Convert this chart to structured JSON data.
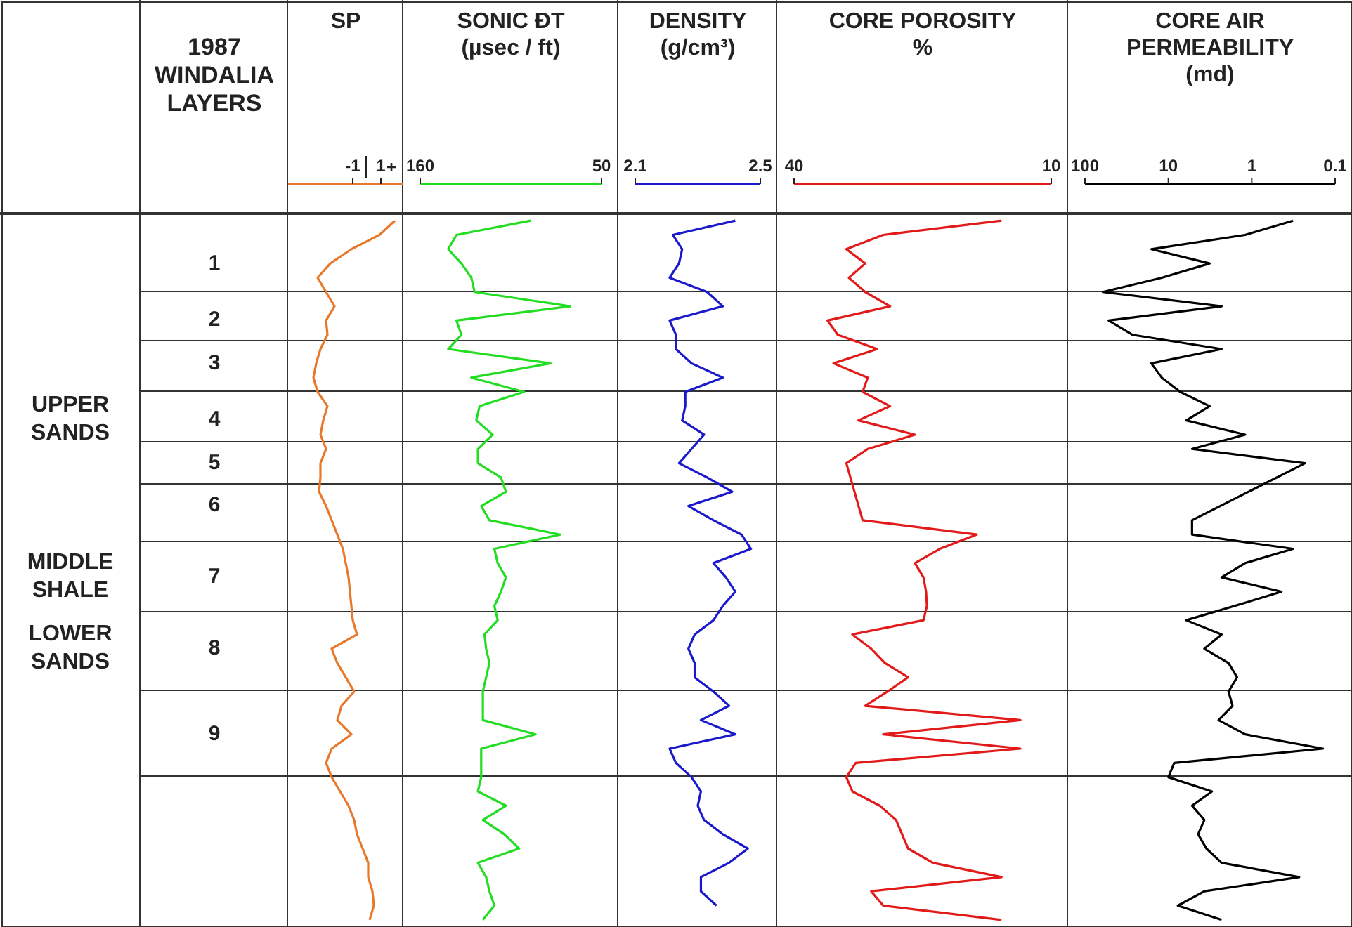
{
  "chart_data": [
    {
      "type": "other",
      "title": "1987 WINDALIA LAYERS",
      "categories": [
        null,
        null,
        null,
        "1",
        null,
        null,
        null,
        "2",
        null,
        null,
        "3",
        null,
        null,
        null,
        "4",
        null,
        null,
        "5",
        null,
        null,
        "6",
        null,
        null,
        null,
        null,
        "7",
        null,
        null,
        null,
        null,
        "8",
        null,
        null,
        null,
        null,
        null,
        "9",
        null,
        null,
        null,
        null,
        null,
        null,
        null,
        null,
        null,
        null,
        null,
        null,
        null
      ],
      "annotations": [
        {
          "text": "UPPER SANDS",
          "y": "4"
        },
        {
          "text": "MIDDLE SHALE",
          "y": "7"
        },
        {
          "text": "LOWER SANDS",
          "y": "8"
        }
      ]
    },
    {
      "type": "line",
      "title": "SP",
      "orientation": "horizontal",
      "categories": [
        null,
        null,
        null,
        null,
        null,
        null,
        null,
        null,
        null,
        null,
        null,
        null,
        null,
        null,
        null,
        null,
        null,
        null,
        null,
        null,
        null,
        null,
        null,
        null,
        null,
        null,
        null,
        null,
        null,
        null,
        null,
        null,
        null,
        null,
        null,
        null,
        null,
        null,
        null,
        null,
        null,
        null,
        null,
        null,
        null,
        null,
        null,
        null,
        null,
        null
      ],
      "xlim": [
        -5.6,
        2.6
      ],
      "xticks": [
        -1,
        1
      ],
      "annotations": [
        "+"
      ],
      "series": [
        {
          "color": "#e8782a",
          "values": [
            2.0,
            0.9,
            -1.1,
            -2.6,
            -3.5,
            -2.9,
            -2.3,
            -2.9,
            -2.8,
            -3.3,
            -3.6,
            -3.8,
            -3.5,
            -2.8,
            -3.1,
            -3.3,
            -2.9,
            -3.3,
            -3.3,
            -3.4,
            -2.9,
            -2.5,
            -2.1,
            -1.7,
            -1.5,
            -1.3,
            -1.2,
            -1.1,
            -1.0,
            -0.7,
            -2.5,
            -2.1,
            -1.5,
            -0.9,
            -1.8,
            -2.1,
            -1.1,
            -2.5,
            -2.9,
            -2.5,
            -1.9,
            -1.3,
            -0.9,
            -0.7,
            -0.3,
            0.1,
            0.1,
            0.4,
            0.5,
            0.2
          ]
        }
      ]
    },
    {
      "type": "line",
      "title": "SONIC ĐT",
      "xlabel": "(µsec / ft)",
      "orientation": "horizontal",
      "categories": [
        null,
        null,
        null,
        null,
        null,
        null,
        null,
        null,
        null,
        null,
        null,
        null,
        null,
        null,
        null,
        null,
        null,
        null,
        null,
        null,
        null,
        null,
        null,
        null,
        null,
        null,
        null,
        null,
        null,
        null,
        null,
        null,
        null,
        null,
        null,
        null,
        null,
        null,
        null,
        null,
        null,
        null,
        null,
        null,
        null,
        null,
        null,
        null,
        null,
        null
      ],
      "xlim": [
        160,
        50
      ],
      "xticks": [
        160,
        50
      ],
      "series": [
        {
          "color": "#22dd22",
          "values": [
            93,
            138,
            143,
            135,
            129,
            127,
            69,
            138,
            135,
            143,
            81,
            129,
            97,
            124,
            126,
            116,
            125,
            125,
            111,
            108,
            123,
            118,
            75,
            115,
            113,
            108,
            111,
            115,
            113,
            121,
            120,
            118,
            120,
            122,
            122,
            122,
            90,
            123,
            123,
            123,
            125,
            108,
            122,
            109,
            100,
            125,
            120,
            118,
            115,
            122
          ]
        }
      ]
    },
    {
      "type": "line",
      "title": "DENSITY",
      "xlabel": "(g/cm³)",
      "orientation": "horizontal",
      "categories": [
        null,
        null,
        null,
        null,
        null,
        null,
        null,
        null,
        null,
        null,
        null,
        null,
        null,
        null,
        null,
        null,
        null,
        null,
        null,
        null,
        null,
        null,
        null,
        null,
        null,
        null,
        null,
        null,
        null,
        null,
        null,
        null,
        null,
        null,
        null,
        null,
        null,
        null,
        null,
        null,
        null,
        null,
        null,
        null,
        null,
        null,
        null,
        null,
        null,
        null
      ],
      "xlim": [
        2.1,
        2.5
      ],
      "xticks": [
        2.1,
        2.5
      ],
      "series": [
        {
          "color": "#1a1acc",
          "values": [
            2.42,
            2.22,
            2.25,
            2.24,
            2.21,
            2.33,
            2.38,
            2.21,
            2.23,
            2.23,
            2.28,
            2.38,
            2.26,
            2.26,
            2.25,
            2.32,
            2.28,
            2.24,
            2.33,
            2.41,
            2.27,
            2.35,
            2.44,
            2.47,
            2.35,
            2.39,
            2.42,
            2.38,
            2.35,
            2.29,
            2.27,
            2.29,
            2.29,
            2.35,
            2.4,
            2.31,
            2.42,
            2.21,
            2.23,
            2.28,
            2.31,
            2.3,
            2.32,
            2.38,
            2.46,
            2.4,
            2.31,
            2.31,
            2.36,
            null
          ]
        }
      ]
    },
    {
      "type": "line",
      "title": "CORE POROSITY",
      "xlabel": "%",
      "orientation": "horizontal",
      "categories": [
        null,
        null,
        null,
        null,
        null,
        null,
        null,
        null,
        null,
        null,
        null,
        null,
        null,
        null,
        null,
        null,
        null,
        null,
        null,
        null,
        null,
        null,
        null,
        null,
        null,
        null,
        null,
        null,
        null,
        null,
        null,
        null,
        null,
        null,
        null,
        null,
        null,
        null,
        null,
        null,
        null,
        null,
        null,
        null,
        null,
        null,
        null,
        null,
        null,
        null
      ],
      "xlim": [
        40,
        10
      ],
      "xticks": [
        40,
        10
      ],
      "series": [
        {
          "color": "#e31a1a",
          "values": [
            15.8,
            29.6,
            33.9,
            31.7,
            33.6,
            31.7,
            28.8,
            36.1,
            34.9,
            30.3,
            35.4,
            31.4,
            32,
            28.8,
            32.5,
            25.9,
            31.4,
            33.9,
            null,
            null,
            null,
            32,
            18.7,
            23,
            25.9,
            24.9,
            24.6,
            24.5,
            24.9,
            33.2,
            31,
            29.4,
            26.7,
            29.1,
            31.7,
            13.6,
            29.6,
            13.6,
            32.8,
            33.9,
            33.2,
            30,
            28.1,
            27.4,
            26.7,
            23.8,
            15.8,
            31,
            29.6,
            15.8
          ]
        }
      ]
    },
    {
      "type": "line",
      "title": "CORE AIR PERMEABILITY",
      "xlabel": "(md)",
      "orientation": "horizontal",
      "log": "x",
      "categories": [
        null,
        null,
        null,
        null,
        null,
        null,
        null,
        null,
        null,
        null,
        null,
        null,
        null,
        null,
        null,
        null,
        null,
        null,
        null,
        null,
        null,
        null,
        null,
        null,
        null,
        null,
        null,
        null,
        null,
        null,
        null,
        null,
        null,
        null,
        null,
        null,
        null,
        null,
        null,
        null,
        null,
        null,
        null,
        null,
        null,
        null,
        null,
        null,
        null,
        null
      ],
      "xlim": [
        100,
        0.1
      ],
      "xticks": [
        100,
        10,
        1,
        0.1
      ],
      "series": [
        {
          "color": "#000000",
          "values": [
            0.32,
            1.2,
            16,
            3.2,
            12,
            61,
            2.3,
            52,
            27,
            2.3,
            16,
            12,
            7.2,
            3.2,
            6.1,
            1.2,
            5.2,
            0.23,
            null,
            null,
            null,
            5.2,
            5.2,
            0.32,
            1.2,
            2.3,
            0.44,
            1.6,
            6.1,
            2.3,
            3.7,
            1.9,
            1.5,
            1.9,
            1.7,
            2.5,
            1.2,
            0.14,
            8.5,
            10,
            3,
            5.2,
            3.7,
            4.4,
            3.5,
            2.3,
            0.27,
            3.7,
            7.7,
            2.3
          ]
        }
      ]
    }
  ]
}
